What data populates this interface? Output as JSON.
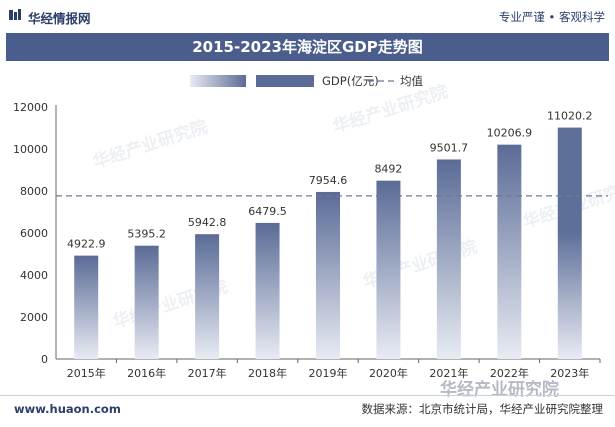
{
  "header": {
    "brand": "华经情报网",
    "tagline": "专业严谨 • 客观科学"
  },
  "title": "2015-2023年海淀区GDP走势图",
  "footer": {
    "website": "www.huaon.com",
    "source": "数据来源：北京市统计局，华经产业研究院整理"
  },
  "watermarks": [
    "华经产业研究院",
    "华经产业研究院",
    "华经产业研究院",
    "华经产业研究院",
    "华经产业研究院",
    "华经产业研究院"
  ],
  "colors": {
    "title_bar": "#4a5d8c",
    "bar_top": "#5a6b96",
    "bar_bottom": "#e8ebf3",
    "highlight_bar": "#5d6e98",
    "avg_line": "#6b7a99"
  },
  "chart_data": {
    "type": "bar",
    "categories": [
      "2015年",
      "2016年",
      "2017年",
      "2018年",
      "2019年",
      "2020年",
      "2021年",
      "2022年",
      "2023年"
    ],
    "series": [
      {
        "name": "GDP(亿元)",
        "values": [
          4922.9,
          5395.2,
          5942.8,
          6479.5,
          7954.6,
          8492,
          9501.7,
          10206.9,
          11020.2
        ]
      }
    ],
    "value_labels": [
      "4922.9",
      "5395.2",
      "5942.8",
      "6479.5",
      "7954.6",
      "8492",
      "9501.7",
      "10206.9",
      "11020.2"
    ],
    "average_line": {
      "name": "均值",
      "value": 7768.4
    },
    "legend": {
      "placement": "top-center",
      "items": [
        "GDP(亿元)",
        "均值"
      ]
    },
    "ylim": [
      0,
      12000
    ],
    "yticks": [
      0,
      2000,
      4000,
      6000,
      8000,
      10000,
      12000
    ],
    "ytick_labels": [
      "0",
      "2000",
      "4000",
      "6000",
      "8000",
      "10000",
      "12000"
    ],
    "grid": false,
    "xlabel": "",
    "ylabel": ""
  }
}
